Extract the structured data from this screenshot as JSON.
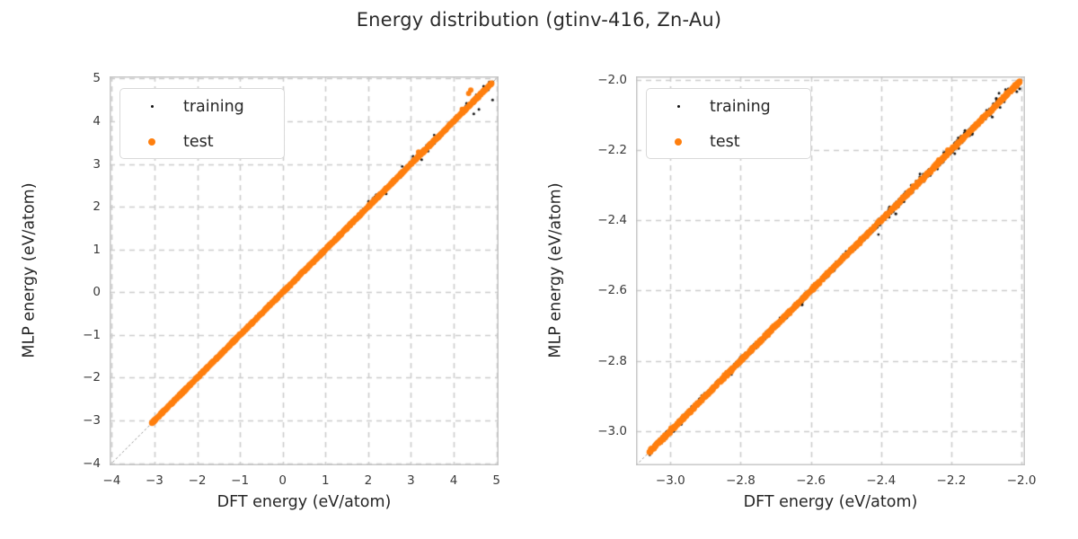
{
  "figure_title": "Energy distribution (gtinv-416, Zn-Au)",
  "legend": {
    "items": [
      {
        "key": "training",
        "label": "training"
      },
      {
        "key": "test",
        "label": "test"
      }
    ]
  },
  "style": {
    "training_color": "#111111",
    "test_color": "#ff7f0e",
    "grid_color": "#cccccc",
    "spine_color": "#c6c6c6",
    "identity_line_color": "#777777",
    "text_color": "#262626"
  },
  "chart_data": [
    {
      "type": "scatter",
      "panel": "full-range",
      "xlabel": "DFT energy (eV/atom)",
      "ylabel": "MLP energy (eV/atom)",
      "xlim": [
        -4.05,
        5.05
      ],
      "ylim": [
        -4.05,
        5.05
      ],
      "xticks": [
        -4,
        -3,
        -2,
        -1,
        0,
        1,
        2,
        3,
        4,
        5
      ],
      "xtick_labels": [
        "−4",
        "−3",
        "−2",
        "−1",
        "0",
        "1",
        "2",
        "3",
        "4",
        "5"
      ],
      "yticks": [
        -4,
        -3,
        -2,
        -1,
        0,
        1,
        2,
        3,
        4,
        5
      ],
      "ytick_labels": [
        "−4",
        "−3",
        "−2",
        "−1",
        "0",
        "1",
        "2",
        "3",
        "4",
        "5"
      ],
      "grid": true,
      "identity_line": true,
      "legend_position": "upper-left",
      "series": [
        {
          "name": "training",
          "marker_radius_px": 1.5,
          "clouds": [
            {
              "x_min": -3.06,
              "x_max": 4.92,
              "n": 3000,
              "sigma": 0.015
            },
            {
              "x_min": 1.4,
              "x_max": 4.92,
              "n": 90,
              "sigma": 0.05
            }
          ],
          "points": [
            [
              4.47,
              4.17
            ],
            [
              4.59,
              4.28
            ],
            [
              4.91,
              4.5
            ],
            [
              4.53,
              4.62
            ],
            [
              4.3,
              4.42
            ],
            [
              4.7,
              4.82
            ],
            [
              3.25,
              3.1
            ],
            [
              3.05,
              3.18
            ],
            [
              3.4,
              3.3
            ],
            [
              2.42,
              2.3
            ],
            [
              1.52,
              1.5
            ],
            [
              1.95,
              1.95
            ],
            [
              2.35,
              2.35
            ],
            [
              0.6,
              0.57
            ]
          ]
        },
        {
          "name": "test",
          "marker_radius_px": 3,
          "clouds": [
            {
              "x_min": -3.06,
              "x_max": 4.9,
              "n": 1300,
              "sigma": 0.007
            }
          ],
          "points": [
            [
              4.4,
              4.73
            ],
            [
              4.35,
              4.65
            ],
            [
              4.2,
              4.28
            ],
            [
              3.18,
              3.28
            ]
          ]
        }
      ]
    },
    {
      "type": "scatter",
      "panel": "zoomed",
      "xlabel": "DFT energy (eV/atom)",
      "ylabel": "MLP energy (eV/atom)",
      "xlim": [
        -3.098,
        -1.99
      ],
      "ylim": [
        -3.098,
        -1.99
      ],
      "xticks": [
        -3.0,
        -2.8,
        -2.6,
        -2.4,
        -2.2,
        -2.0
      ],
      "xtick_labels": [
        "−3.0",
        "−2.8",
        "−2.6",
        "−2.4",
        "−2.2",
        "−2.0"
      ],
      "yticks": [
        -2.0,
        -2.2,
        -2.4,
        -2.6,
        -2.8,
        -3.0
      ],
      "ytick_labels": [
        "−2.0",
        "−2.2",
        "−2.4",
        "−2.6",
        "−2.8",
        "−3.0"
      ],
      "grid": true,
      "identity_line": true,
      "legend_position": "upper-left",
      "series": [
        {
          "name": "training",
          "marker_radius_px": 1.5,
          "clouds": [
            {
              "x_min": -3.06,
              "x_max": -2.005,
              "n": 2600,
              "sigma": 0.0035
            },
            {
              "x_min": -2.42,
              "x_max": -2.005,
              "n": 130,
              "sigma": 0.009
            }
          ],
          "points": [
            [
              -2.18,
              -2.165
            ],
            [
              -2.19,
              -2.21
            ],
            [
              -2.26,
              -2.272
            ],
            [
              -2.08,
              -2.068
            ],
            [
              -2.064,
              -2.038
            ],
            [
              -2.33,
              -2.322
            ],
            [
              -2.14,
              -2.152
            ],
            [
              -2.04,
              -2.03
            ],
            [
              -2.3,
              -2.288
            ]
          ]
        },
        {
          "name": "test",
          "marker_radius_px": 3,
          "clouds": [
            {
              "x_min": -3.06,
              "x_max": -2.005,
              "n": 1200,
              "sigma": 0.0018
            }
          ],
          "points": [
            [
              -2.21,
              -2.2
            ],
            [
              -2.3,
              -2.305
            ]
          ]
        }
      ]
    }
  ]
}
